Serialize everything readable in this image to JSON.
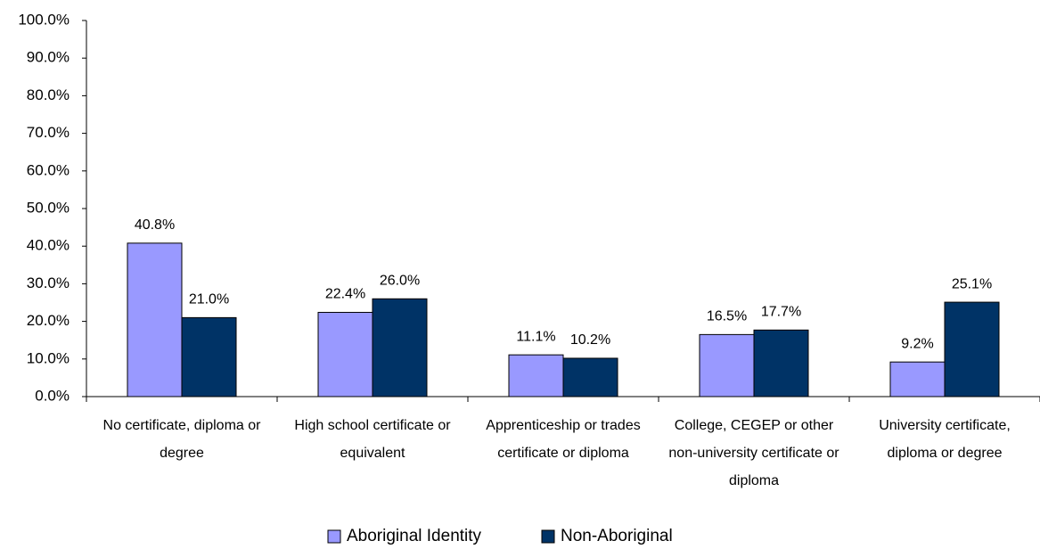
{
  "chart_data": {
    "type": "bar",
    "categories": [
      [
        "No certificate, diploma or",
        "degree"
      ],
      [
        "High school certificate or",
        "equivalent"
      ],
      [
        "Apprenticeship or trades",
        "certificate or diploma"
      ],
      [
        "College, CEGEP or other",
        "non-university certificate or",
        "diploma"
      ],
      [
        "University certificate,",
        "diploma or degree"
      ]
    ],
    "series": [
      {
        "name": "Aboriginal Identity",
        "color": "#9999ff",
        "values": [
          40.8,
          22.4,
          11.1,
          16.5,
          9.2
        ],
        "value_labels": [
          "40.8%",
          "22.4%",
          "11.1%",
          "16.5%",
          "9.2%"
        ]
      },
      {
        "name": "Non-Aboriginal",
        "color": "#003366",
        "values": [
          21.0,
          26.0,
          10.2,
          17.7,
          25.1
        ],
        "value_labels": [
          "21.0%",
          "26.0%",
          "10.2%",
          "17.7%",
          "25.1%"
        ]
      }
    ],
    "ylim": [
      0,
      100
    ],
    "yticks": [
      {
        "value": 0,
        "label": "0.0%"
      },
      {
        "value": 10,
        "label": "10.0%"
      },
      {
        "value": 20,
        "label": "20.0%"
      },
      {
        "value": 30,
        "label": "30.0%"
      },
      {
        "value": 40,
        "label": "40.0%"
      },
      {
        "value": 50,
        "label": "50.0%"
      },
      {
        "value": 60,
        "label": "60.0%"
      },
      {
        "value": 70,
        "label": "70.0%"
      },
      {
        "value": 80,
        "label": "80.0%"
      },
      {
        "value": 90,
        "label": "90.0%"
      },
      {
        "value": 100,
        "label": "100.0%"
      }
    ],
    "legend": "bottom"
  }
}
